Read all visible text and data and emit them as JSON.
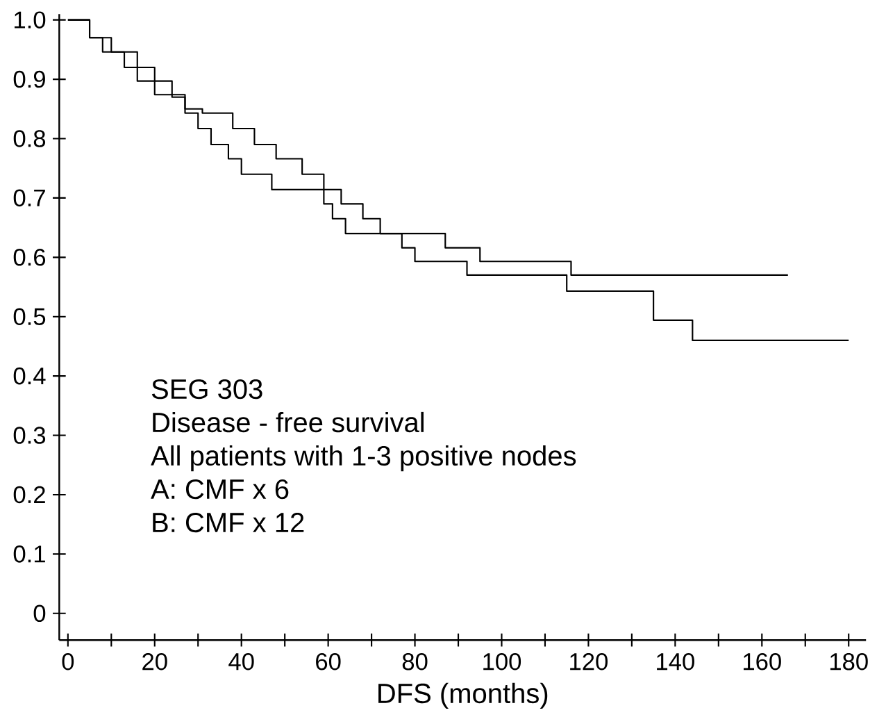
{
  "chart_data": {
    "type": "step",
    "xlabel": "DFS (months)",
    "annotations": [
      "SEG 303",
      "Disease - free survival",
      "All patients with 1-3 positive nodes",
      "A: CMF x 6",
      "B: CMF x 12"
    ],
    "series": [
      {
        "color": "#000000",
        "x": [
          0,
          5,
          8,
          13,
          16,
          24,
          27,
          30,
          33,
          37,
          40,
          47,
          63,
          68,
          72,
          87,
          95,
          116,
          166
        ],
        "values": [
          1.0,
          0.97,
          0.946,
          0.92,
          0.897,
          0.87,
          0.843,
          0.817,
          0.79,
          0.766,
          0.74,
          0.714,
          0.69,
          0.665,
          0.64,
          0.616,
          0.593,
          0.57,
          0.57
        ]
      },
      {
        "color": "#000000",
        "x": [
          0,
          5,
          10,
          16,
          20,
          27,
          31,
          38,
          43,
          48,
          54,
          59,
          61,
          64,
          77,
          80,
          92,
          115,
          135,
          144,
          180
        ],
        "values": [
          1.0,
          0.97,
          0.946,
          0.92,
          0.874,
          0.85,
          0.843,
          0.817,
          0.79,
          0.766,
          0.74,
          0.69,
          0.665,
          0.64,
          0.616,
          0.593,
          0.57,
          0.543,
          0.494,
          0.46,
          0.46
        ]
      }
    ],
    "xlim": [
      -2,
      184
    ],
    "ylim": [
      -0.045,
      1.01
    ],
    "xticks": [
      0,
      {
        "value": 10,
        "label": null
      },
      20,
      {
        "value": 30,
        "label": null
      },
      40,
      {
        "value": 50,
        "label": null
      },
      60,
      {
        "value": 70,
        "label": null
      },
      80,
      {
        "value": 90,
        "label": null
      },
      100,
      {
        "value": 110,
        "label": null
      },
      120,
      {
        "value": 130,
        "label": null
      },
      140,
      {
        "value": 150,
        "label": null
      },
      160,
      {
        "value": 170,
        "label": null
      },
      180
    ],
    "yticks": [
      0,
      0.1,
      0.2,
      0.3,
      0.4,
      0.5,
      0.6,
      0.7,
      0.8,
      0.9,
      {
        "value": 1.0,
        "label": "1.0"
      }
    ],
    "marker": "none",
    "line_style": "solid"
  }
}
